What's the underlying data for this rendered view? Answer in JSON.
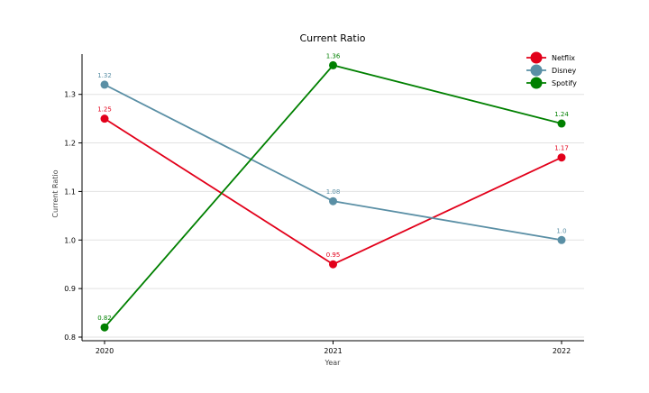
{
  "chart_data": {
    "type": "line",
    "title": "Current Ratio",
    "xlabel": "Year",
    "ylabel": "Current Ratio",
    "categories": [
      "2020",
      "2021",
      "2022"
    ],
    "ylim": [
      0.8,
      1.37
    ],
    "yticks": [
      "0.8",
      "0.9",
      "1.0",
      "1.1",
      "1.2",
      "1.3"
    ],
    "grid": true,
    "legend_position": "top-right",
    "series": [
      {
        "name": "Netflix",
        "color": "#e2001a",
        "values": [
          1.25,
          0.95,
          1.17
        ],
        "labels": [
          "1.25",
          "0.95",
          "1.17"
        ]
      },
      {
        "name": "Disney",
        "color": "#5a8fa5",
        "values": [
          1.32,
          1.08,
          1.0
        ],
        "labels": [
          "1.32",
          "1.08",
          "1.0"
        ]
      },
      {
        "name": "Spotify",
        "color": "#008000",
        "values": [
          0.82,
          1.36,
          1.24
        ],
        "labels": [
          "0.82",
          "1.36",
          "1.24"
        ]
      }
    ]
  }
}
